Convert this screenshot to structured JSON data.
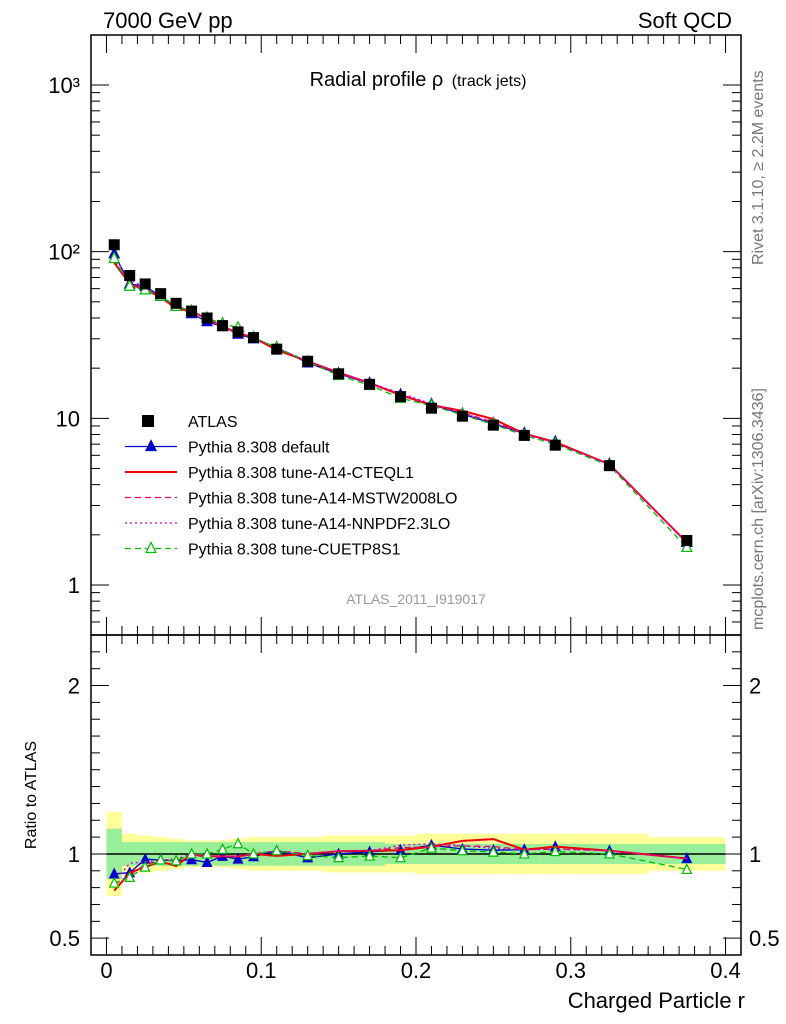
{
  "header": {
    "left": "7000 GeV pp",
    "right": "Soft QCD"
  },
  "side_text": {
    "top": "Rivet 3.1.10, ≥ 2.2M events",
    "bottom": "mcplots.cern.ch [arXiv:1306.3436]"
  },
  "analysis_label": "ATLAS_2011_I919017",
  "chart_data": {
    "type": "scatter",
    "title_main": "Radial profile ρ",
    "title_sub": "(track jets)",
    "xlabel": "Charged Particle r",
    "ratio_ylabel": "Ratio to ATLAS",
    "x_ticks": [
      "0",
      "0.1",
      "0.2",
      "0.3",
      "0.4"
    ],
    "main_ticks": [
      "1",
      "10",
      "10²",
      "10³"
    ],
    "ratio_ticks": [
      "0.5",
      "1",
      "2"
    ],
    "xlim": [
      -0.01,
      0.41
    ],
    "ylim_main_log10": [
      -0.3,
      3.3
    ],
    "ylim_ratio": [
      0.4,
      2.3
    ],
    "x": [
      0.005,
      0.015,
      0.025,
      0.035,
      0.045,
      0.055,
      0.065,
      0.075,
      0.085,
      0.095,
      0.11,
      0.13,
      0.15,
      0.17,
      0.19,
      0.21,
      0.23,
      0.25,
      0.27,
      0.29,
      0.325,
      0.375
    ],
    "bins": [
      [
        0,
        0.01
      ],
      [
        0.01,
        0.02
      ],
      [
        0.02,
        0.03
      ],
      [
        0.03,
        0.04
      ],
      [
        0.04,
        0.05
      ],
      [
        0.05,
        0.06
      ],
      [
        0.06,
        0.07
      ],
      [
        0.07,
        0.08
      ],
      [
        0.08,
        0.09
      ],
      [
        0.09,
        0.1
      ],
      [
        0.1,
        0.12
      ],
      [
        0.12,
        0.14
      ],
      [
        0.14,
        0.16
      ],
      [
        0.16,
        0.18
      ],
      [
        0.18,
        0.2
      ],
      [
        0.2,
        0.22
      ],
      [
        0.22,
        0.24
      ],
      [
        0.24,
        0.26
      ],
      [
        0.26,
        0.28
      ],
      [
        0.28,
        0.3
      ],
      [
        0.3,
        0.35
      ],
      [
        0.35,
        0.4
      ]
    ],
    "data": {
      "name": "ATLAS",
      "values": [
        110,
        72,
        64,
        56,
        49,
        44,
        40,
        36,
        33,
        30.5,
        26,
        22,
        18.5,
        16,
        13.5,
        11.5,
        10.3,
        9.1,
        7.9,
        6.9,
        5.2,
        1.85
      ],
      "band_inner": [
        0.15,
        0.07,
        0.07,
        0.07,
        0.07,
        0.07,
        0.07,
        0.07,
        0.07,
        0.07,
        0.07,
        0.07,
        0.07,
        0.07,
        0.06,
        0.06,
        0.06,
        0.06,
        0.06,
        0.06,
        0.06,
        0.06
      ],
      "band_outer": [
        0.25,
        0.12,
        0.11,
        0.1,
        0.09,
        0.08,
        0.08,
        0.08,
        0.09,
        0.1,
        0.1,
        0.1,
        0.11,
        0.11,
        0.11,
        0.12,
        0.12,
        0.12,
        0.12,
        0.12,
        0.12,
        0.1
      ]
    },
    "series": [
      {
        "name": "Pythia 8.308 default",
        "color": "#0000cc",
        "style": "solid",
        "marker": "triangle-filled",
        "values": [
          97,
          64,
          62,
          54,
          47,
          42.5,
          38,
          35.5,
          32,
          30,
          26.5,
          21.5,
          18.5,
          16.2,
          13.8,
          12.1,
          10.6,
          9.3,
          8.1,
          7.2,
          5.3,
          1.8
        ]
      },
      {
        "name": "Pythia 8.308 tune-A14-CTEQL1",
        "color": "#ee0000",
        "style": "solid",
        "marker": "none",
        "values": [
          86,
          64,
          59,
          53.5,
          45.5,
          44,
          39.5,
          35.5,
          32.5,
          30.5,
          25.7,
          22,
          18.8,
          16.3,
          13.8,
          12,
          11.1,
          9.9,
          8.1,
          7.2,
          5.3,
          1.8
        ]
      },
      {
        "name": "Pythia 8.308 tune-A14-MSTW2008LO",
        "color": "#ee0066",
        "style": "dashed",
        "marker": "none",
        "values": [
          90,
          63,
          60,
          54,
          47,
          44,
          39,
          35.5,
          32.5,
          30.5,
          26.5,
          22,
          18.8,
          16.3,
          14,
          12,
          10.8,
          9.5,
          8.1,
          7.1,
          5.3,
          1.8
        ]
      },
      {
        "name": "Pythia 8.308 tune-A14-NNPDF2.3LO",
        "color": "#cc00cc",
        "style": "dotted",
        "marker": "none",
        "values": [
          92,
          68,
          61,
          54,
          47.5,
          44,
          39.5,
          35.5,
          32.5,
          30.5,
          26.5,
          22,
          18.8,
          16.3,
          14.2,
          12.2,
          10.8,
          9.4,
          8.1,
          7.1,
          5.3,
          1.8
        ]
      },
      {
        "name": "Pythia 8.308 tune-CUETP8S1",
        "color": "#00bb00",
        "style": "dashed",
        "marker": "triangle-open",
        "values": [
          91,
          62,
          59,
          54,
          47,
          44,
          40,
          37,
          35,
          30.5,
          26.5,
          21.8,
          18.1,
          15.8,
          13.2,
          11.9,
          10.5,
          9.2,
          7.9,
          7,
          5.2,
          1.68
        ]
      }
    ]
  }
}
